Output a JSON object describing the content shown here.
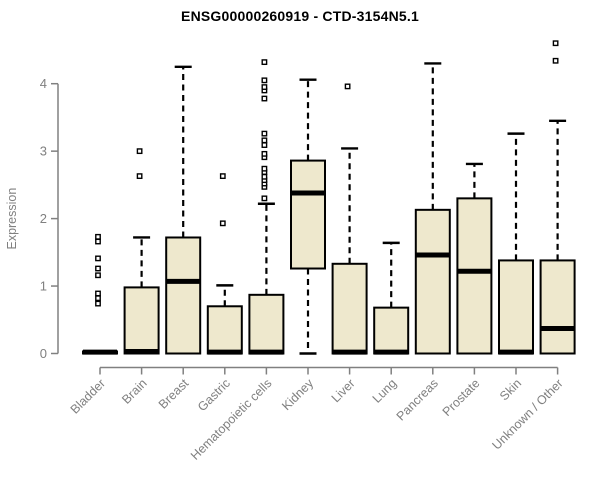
{
  "title": "ENSG00000260919 - CTD-3154N5.1",
  "chart_data": {
    "type": "boxplot",
    "title": "ENSG00000260919 - CTD-3154N5.1",
    "xlabel": "",
    "ylabel": "Expression",
    "ylim": [
      0,
      4.7
    ],
    "yticks": [
      0,
      1,
      2,
      3,
      4
    ],
    "grid": false,
    "legend": "none",
    "categories": [
      "Bladder",
      "Brain",
      "Breast",
      "Gastric",
      "Hematopoietic cells",
      "Kidney",
      "Liver",
      "Lung",
      "Pancreas",
      "Prostate",
      "Skin",
      "Unknown / Other"
    ],
    "series": [
      {
        "name": "Bladder",
        "q1": 0,
        "median": 0.02,
        "q3": 0.03,
        "whisker_low": 0,
        "whisker_high": 0.03,
        "outliers": [
          0.74,
          0.82,
          0.89,
          1.16,
          1.26,
          1.41,
          1.66,
          1.73
        ]
      },
      {
        "name": "Brain",
        "q1": 0,
        "median": 0.03,
        "q3": 0.98,
        "whisker_low": 0,
        "whisker_high": 1.72,
        "outliers": [
          2.63,
          3.0
        ]
      },
      {
        "name": "Breast",
        "q1": 0,
        "median": 1.07,
        "q3": 1.72,
        "whisker_low": 0,
        "whisker_high": 4.25,
        "outliers": []
      },
      {
        "name": "Gastric",
        "q1": 0,
        "median": 0.02,
        "q3": 0.7,
        "whisker_low": 0,
        "whisker_high": 1.01,
        "outliers": [
          1.93,
          2.63
        ]
      },
      {
        "name": "Hematopoietic cells",
        "q1": 0,
        "median": 0.02,
        "q3": 0.87,
        "whisker_low": 0,
        "whisker_high": 2.22,
        "outliers": [
          2.3,
          2.47,
          2.52,
          2.57,
          2.62,
          2.69,
          2.74,
          2.91,
          2.96,
          3.09,
          3.16,
          3.26,
          3.78,
          3.9,
          3.95,
          4.05,
          4.32
        ]
      },
      {
        "name": "Kidney",
        "q1": 1.26,
        "median": 2.38,
        "q3": 2.86,
        "whisker_low": 0,
        "whisker_high": 4.06,
        "outliers": []
      },
      {
        "name": "Liver",
        "q1": 0,
        "median": 0.02,
        "q3": 1.33,
        "whisker_low": 0,
        "whisker_high": 3.04,
        "outliers": [
          3.96
        ]
      },
      {
        "name": "Lung",
        "q1": 0,
        "median": 0.02,
        "q3": 0.68,
        "whisker_low": 0,
        "whisker_high": 1.64,
        "outliers": []
      },
      {
        "name": "Pancreas",
        "q1": 0,
        "median": 1.46,
        "q3": 2.13,
        "whisker_low": 0,
        "whisker_high": 4.3,
        "outliers": []
      },
      {
        "name": "Prostate",
        "q1": 0,
        "median": 1.22,
        "q3": 2.3,
        "whisker_low": 0,
        "whisker_high": 2.81,
        "outliers": []
      },
      {
        "name": "Skin",
        "q1": 0,
        "median": 0.02,
        "q3": 1.38,
        "whisker_low": 0,
        "whisker_high": 3.26,
        "outliers": []
      },
      {
        "name": "Unknown / Other",
        "q1": 0,
        "median": 0.37,
        "q3": 1.38,
        "whisker_low": 0,
        "whisker_high": 3.45,
        "outliers": [
          4.34,
          4.6
        ]
      }
    ],
    "colors": {
      "background": "#FFFFFF",
      "box_fill": "#EEE8CD",
      "box_stroke": "#000000",
      "median": "#000000",
      "whisker": "#000000",
      "outlier_stroke": "#000000",
      "outlier_fill": "#FFFFFF",
      "axis": "#808080",
      "axis_text": "#808080",
      "title": "#000000"
    }
  }
}
